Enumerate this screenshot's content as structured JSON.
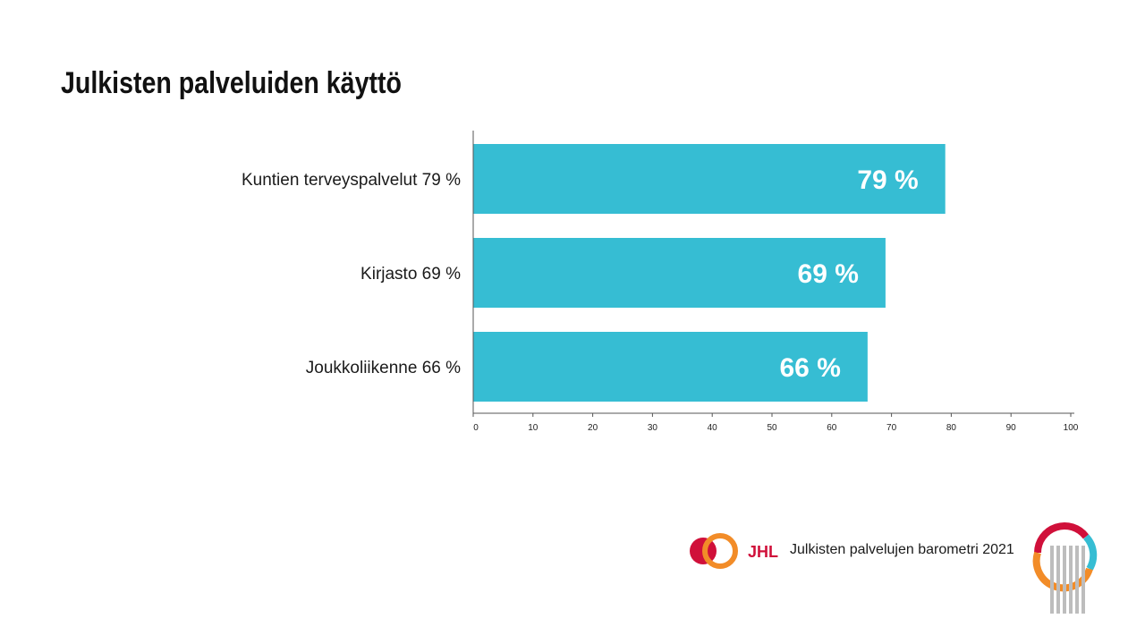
{
  "slide": {
    "title": "Julkisten palveluiden käyttö"
  },
  "chart_data": {
    "type": "bar",
    "orientation": "horizontal",
    "categories": [
      "Kuntien terveyspalvelut 79 %",
      "Kirjasto 69 %",
      "Joukkoliikenne 66 %"
    ],
    "values": [
      79,
      69,
      66
    ],
    "value_labels": [
      "79 %",
      "69 %",
      "66 %"
    ],
    "xlim": [
      0,
      100
    ],
    "xticks": [
      0,
      10,
      20,
      30,
      40,
      50,
      60,
      70,
      80,
      90,
      100
    ],
    "grid": false,
    "legend": "none",
    "bar_color": "#36BDD3"
  },
  "footer": {
    "brand_logo_text": "JHL",
    "text": "Julkisten palvelujen barometri 2021"
  },
  "colors": {
    "bar": "#36BDD3",
    "brand_red": "#D0103A",
    "brand_orange": "#F28C28",
    "brand_cyan": "#36BDD3",
    "brand_grey": "#BDBDBD"
  }
}
